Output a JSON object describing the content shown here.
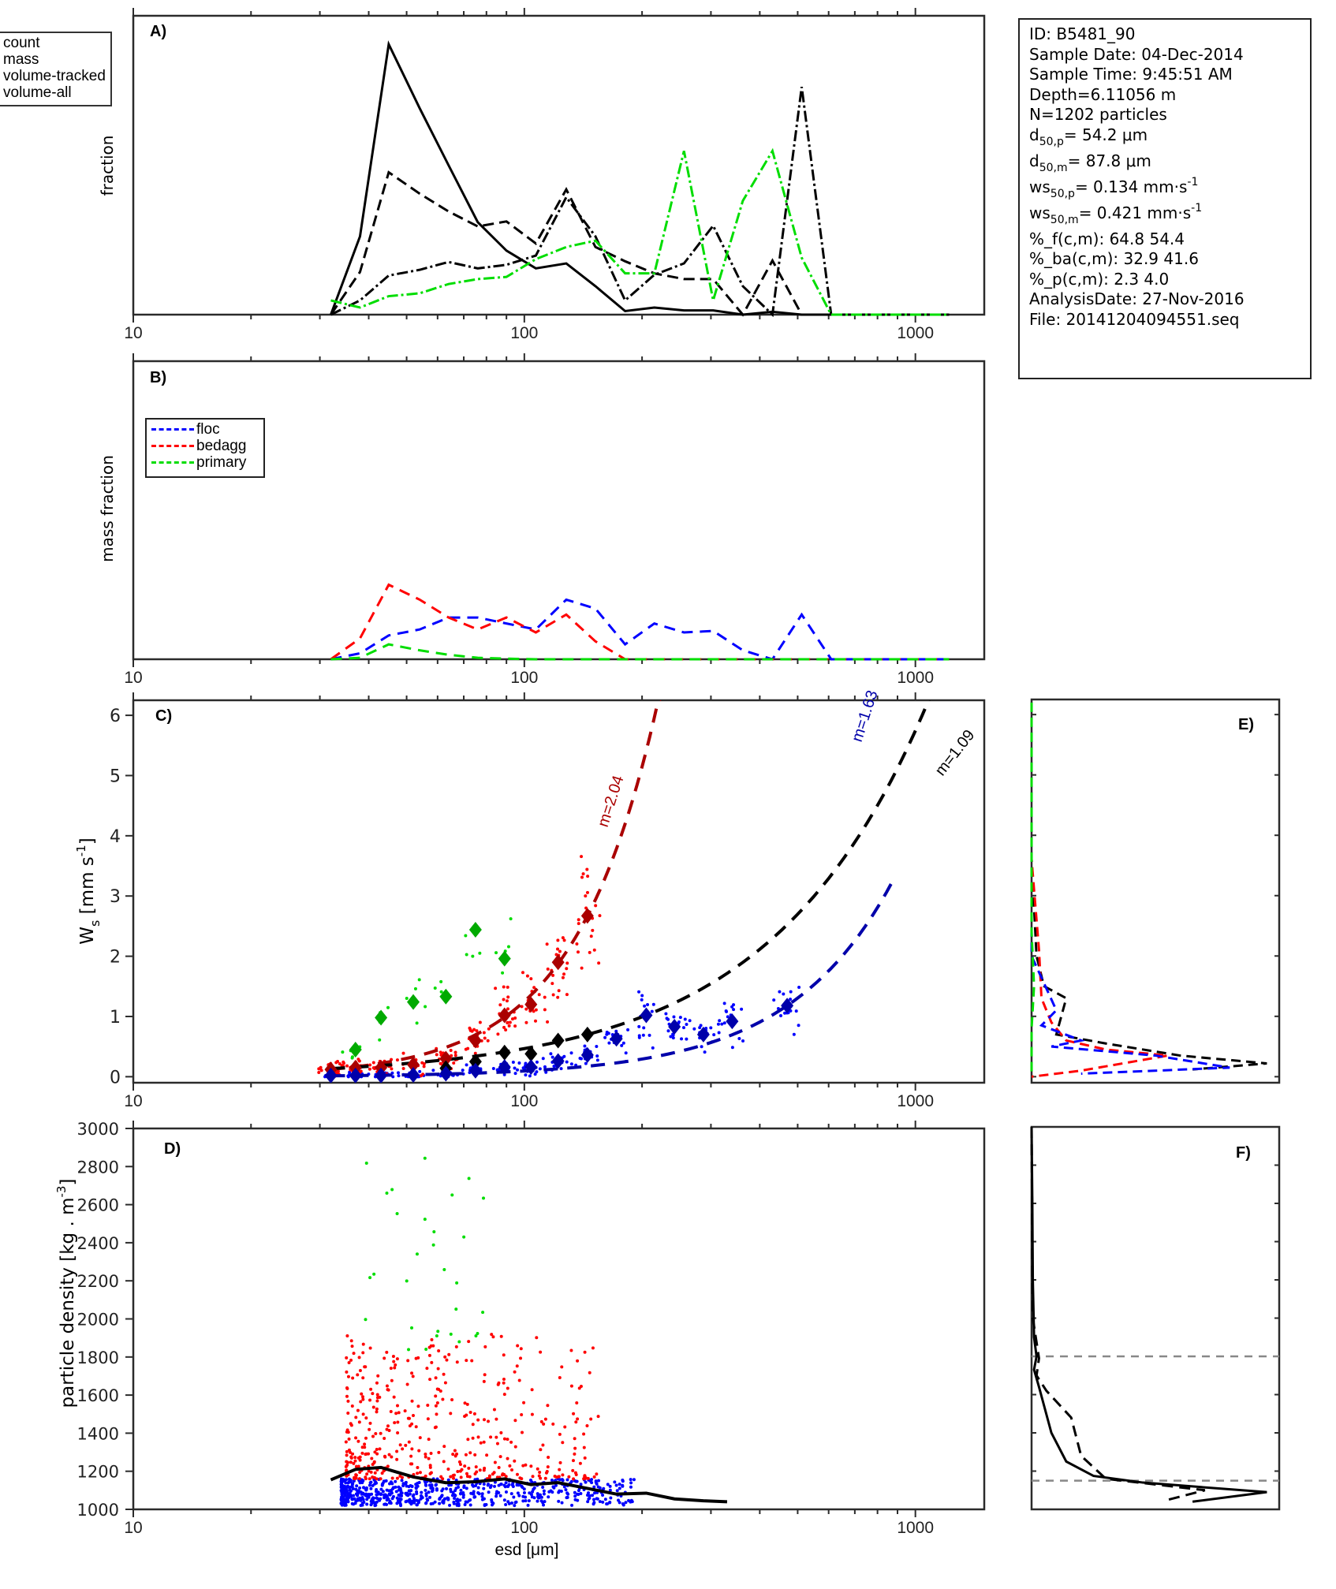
{
  "info_box": {
    "id": "ID: B5481_90",
    "sample_date": "Sample Date: 04-Dec-2014",
    "sample_time": "Sample Time:  9:45:51 AM",
    "depth": "Depth=6.11056 m",
    "n": "N=1202 particles",
    "d50p_label": "d",
    "d50p_sub": "50,p",
    "d50p_value": "=  54.2 μm",
    "d50m_label": "d",
    "d50m_sub": "50,m",
    "d50m_value": "=  87.8 μm",
    "ws50p_label": "ws",
    "ws50p_sub": "50,p",
    "ws50p_value": "= 0.134 mm·s",
    "ws50p_sup": "-1",
    "ws50m_label": "ws",
    "ws50m_sub": "50,m",
    "ws50m_value": "= 0.421 mm·s",
    "ws50m_sup": "-1",
    "pct_f": "%_f(c,m): 64.8 54.4",
    "pct_ba": "%_ba(c,m): 32.9 41.6",
    "pct_p": "%_p(c,m): 2.3 4.0",
    "analysis_date": "AnalysisDate: 27-Nov-2016",
    "file": "File: 20141204094551.seq"
  },
  "legend_a": [
    "count",
    "mass",
    "volume-tracked",
    "volume-all"
  ],
  "legend_b": [
    {
      "label": "floc",
      "color": "#0000ff"
    },
    {
      "label": "bedagg",
      "color": "#ff0000"
    },
    {
      "label": "primary",
      "color": "#00dd00"
    }
  ],
  "chart_data": [
    {
      "panel": "A)",
      "type": "line",
      "xlabel": "",
      "ylabel": "fraction",
      "xscale": "log",
      "xlim": [
        10,
        1500
      ],
      "ylim": [
        0,
        0.42
      ],
      "xticklabels": [
        "10",
        "100",
        "1000"
      ],
      "x": [
        32,
        38,
        45,
        54,
        64,
        76,
        90,
        107,
        128,
        152,
        181,
        215,
        256,
        304,
        362,
        431,
        512,
        609,
        725,
        862,
        1025,
        1219
      ],
      "series": [
        {
          "name": "count",
          "style": "solid",
          "color": "#000000",
          "values": [
            0.0,
            0.11,
            0.38,
            0.29,
            0.21,
            0.13,
            0.09,
            0.065,
            0.072,
            0.04,
            0.005,
            0.01,
            0.006,
            0.006,
            0.0,
            0.004,
            0.0,
            0.0,
            0.0,
            0.0,
            0.0,
            0.0
          ]
        },
        {
          "name": "mass",
          "style": "dashed",
          "color": "#000000",
          "values": [
            0.0,
            0.06,
            0.2,
            0.17,
            0.145,
            0.124,
            0.131,
            0.1,
            0.176,
            0.095,
            0.075,
            0.058,
            0.05,
            0.05,
            0.0,
            0.076,
            0.0,
            0.0,
            0.0,
            0.0,
            0.0,
            0.0
          ]
        },
        {
          "name": "volume-tracked",
          "style": "dashdot",
          "color": "#000000",
          "values": [
            0.0,
            0.02,
            0.055,
            0.063,
            0.074,
            0.065,
            0.07,
            0.083,
            0.165,
            0.11,
            0.02,
            0.056,
            0.072,
            0.125,
            0.04,
            0.0,
            0.32,
            0.0,
            0.0,
            0.0,
            0.0,
            0.0
          ]
        },
        {
          "name": "volume-all",
          "style": "dashdot",
          "color": "#00dd00",
          "values": [
            0.02,
            0.01,
            0.026,
            0.03,
            0.043,
            0.05,
            0.053,
            0.078,
            0.095,
            0.104,
            0.058,
            0.058,
            0.23,
            0.02,
            0.16,
            0.23,
            0.08,
            0.0,
            0.0,
            0.0,
            0.0,
            0.0
          ]
        }
      ]
    },
    {
      "panel": "B)",
      "type": "line",
      "xlabel": "",
      "ylabel": "mass fraction",
      "xscale": "log",
      "xlim": [
        10,
        1500
      ],
      "ylim": [
        0,
        1.0
      ],
      "xticklabels": [
        "10",
        "100",
        "1000"
      ],
      "x": [
        32,
        38,
        45,
        54,
        64,
        76,
        90,
        107,
        128,
        152,
        181,
        215,
        256,
        304,
        362,
        431,
        512,
        609,
        725,
        862,
        1025,
        1219
      ],
      "series": [
        {
          "name": "floc",
          "color": "#0000ff",
          "values": [
            0.0,
            0.02,
            0.08,
            0.1,
            0.14,
            0.14,
            0.12,
            0.1,
            0.2,
            0.17,
            0.05,
            0.12,
            0.09,
            0.095,
            0.03,
            0.0,
            0.15,
            0.0,
            0.0,
            0.0,
            0.0,
            0.0
          ]
        },
        {
          "name": "bedagg",
          "color": "#ff0000",
          "values": [
            0.0,
            0.07,
            0.25,
            0.2,
            0.14,
            0.1,
            0.14,
            0.09,
            0.15,
            0.06,
            0.0,
            0.0,
            0.0,
            0.0,
            0.0,
            0.0,
            0.0,
            0.0,
            0.0,
            0.0,
            0.0,
            0.0
          ]
        },
        {
          "name": "primary",
          "color": "#00dd00",
          "values": [
            0.0,
            0.005,
            0.05,
            0.03,
            0.015,
            0.005,
            0.002,
            0.0,
            0.0,
            0.0,
            0.0,
            0.0,
            0.0,
            0.0,
            0.0,
            0.0,
            0.0,
            0.0,
            0.0,
            0.0,
            0.0,
            0.0
          ]
        }
      ]
    },
    {
      "panel": "C)",
      "type": "scatter",
      "xlabel": "",
      "ylabel": "W_s [mm s^-1]",
      "xscale": "log",
      "xlim": [
        10,
        1500
      ],
      "ylim": [
        -0.1,
        6.25
      ],
      "xticklabels": [
        "10",
        "100",
        "1000"
      ],
      "yticks": [
        0,
        1,
        2,
        3,
        4,
        5,
        6
      ],
      "binned_means": [
        {
          "name": "primary",
          "color": "#00aa00",
          "points": [
            [
              37,
              0.45
            ],
            [
              43,
              0.98
            ],
            [
              52,
              1.24
            ],
            [
              63,
              1.33
            ],
            [
              75,
              2.44
            ],
            [
              89,
              1.96
            ]
          ]
        },
        {
          "name": "bedagg",
          "color": "#aa0000",
          "points": [
            [
              32,
              0.12
            ],
            [
              37,
              0.15
            ],
            [
              43,
              0.15
            ],
            [
              52,
              0.2
            ],
            [
              63,
              0.3
            ],
            [
              75,
              0.6
            ],
            [
              89,
              1.02
            ],
            [
              104,
              1.2
            ],
            [
              122,
              1.9
            ],
            [
              145,
              2.67
            ]
          ]
        },
        {
          "name": "all",
          "color": "#000000",
          "points": [
            [
              63,
              0.14
            ],
            [
              75,
              0.25
            ],
            [
              89,
              0.4
            ],
            [
              104,
              0.38
            ],
            [
              122,
              0.6
            ],
            [
              145,
              0.7
            ]
          ]
        },
        {
          "name": "floc",
          "color": "#0000aa",
          "points": [
            [
              32,
              0.02
            ],
            [
              37,
              0.02
            ],
            [
              43,
              0.02
            ],
            [
              52,
              0.03
            ],
            [
              63,
              0.05
            ],
            [
              75,
              0.1
            ],
            [
              89,
              0.16
            ],
            [
              104,
              0.16
            ],
            [
              122,
              0.26
            ],
            [
              145,
              0.36
            ],
            [
              172,
              0.63
            ],
            [
              205,
              1.02
            ],
            [
              242,
              0.83
            ],
            [
              287,
              0.7
            ],
            [
              340,
              0.92
            ],
            [
              470,
              1.18
            ]
          ]
        }
      ],
      "fits": [
        {
          "name": "bedagg-fit",
          "label": "m=2.04",
          "color": "#aa0000",
          "m": 2.04,
          "x_range": [
            32,
            225
          ]
        },
        {
          "name": "floc-fit",
          "label": "m=1.63",
          "color": "#0000aa",
          "m": 1.63,
          "x_range": [
            32,
            880
          ]
        },
        {
          "name": "all-fit",
          "label": "m=1.09",
          "color": "#000000",
          "m": 1.09,
          "x_range": [
            32,
            1250
          ]
        }
      ]
    },
    {
      "panel": "D)",
      "type": "scatter",
      "xlabel": "esd [μm]",
      "ylabel": "particle density [kg . m^-3]",
      "xscale": "log",
      "xlim": [
        10,
        1500
      ],
      "ylim": [
        1000,
        3000
      ],
      "xticklabels": [
        "10",
        "100",
        "1000"
      ],
      "yticks": [
        1000,
        1200,
        1400,
        1600,
        1800,
        2000,
        2200,
        2400,
        2600,
        2800,
        3000
      ],
      "mean_line": {
        "x": [
          32,
          37,
          43,
          52,
          63,
          75,
          89,
          104,
          122,
          145,
          172,
          205,
          242,
          287,
          330
        ],
        "y": [
          1155,
          1210,
          1220,
          1170,
          1140,
          1145,
          1160,
          1130,
          1140,
          1110,
          1080,
          1085,
          1055,
          1045,
          1040
        ]
      }
    },
    {
      "panel": "E)",
      "type": "line",
      "orientation": "horizontal-distribution",
      "ylim": [
        -0.1,
        6.25
      ],
      "series_colors": [
        "#000000",
        "#ff0000",
        "#0000ff",
        "#00dd00"
      ]
    },
    {
      "panel": "F)",
      "type": "line",
      "orientation": "horizontal-distribution",
      "ylim": [
        1000,
        3000
      ],
      "reference_lines": [
        1800,
        1150
      ]
    }
  ],
  "labels": {
    "panel_a": "A)",
    "panel_b": "B)",
    "panel_c": "C)",
    "panel_d": "D)",
    "panel_e": "E)",
    "panel_f": "F)",
    "ylabel_a": "fraction",
    "ylabel_b": "mass fraction",
    "ylabel_c_main": "W",
    "ylabel_c_sub": "s",
    "ylabel_c_unit": " [mm s",
    "ylabel_c_sup": "-1",
    "ylabel_c_end": "]",
    "ylabel_d_main": "particle density [kg . m",
    "ylabel_d_sup": "-3",
    "ylabel_d_end": "]",
    "xlabel_d": "esd [μm]",
    "fit_labels": [
      "m=2.04",
      "m=1.63",
      "m=1.09"
    ]
  }
}
